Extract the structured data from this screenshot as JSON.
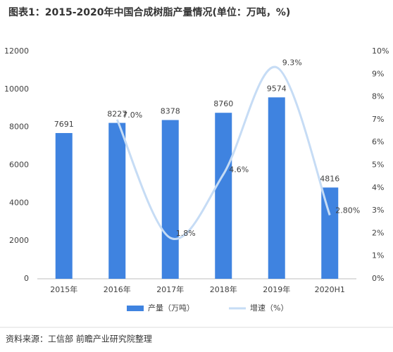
{
  "chart_data": {
    "type": "bar",
    "title": "图表1：2015-2020年中国合成树脂产量情况(单位：万吨，%)",
    "categories": [
      "2015年",
      "2016年",
      "2017年",
      "2018年",
      "2019年",
      "2020H1"
    ],
    "series": [
      {
        "name": "产量（万吨）",
        "type": "bar",
        "color": "#3f83e0",
        "values": [
          7691,
          8227,
          8378,
          8760,
          9574,
          4816
        ]
      },
      {
        "name": "增速（%）",
        "type": "line",
        "axis": "y2",
        "color": "#c6dcf5",
        "values": [
          null,
          7.0,
          1.8,
          4.6,
          9.3,
          2.8
        ],
        "value_labels": [
          null,
          "7.0%",
          "1.8%",
          "4.6%",
          "9.3%",
          "2.80%"
        ]
      }
    ],
    "ylim": [
      0,
      12000
    ],
    "yticks": [
      0,
      2000,
      4000,
      6000,
      8000,
      10000,
      12000
    ],
    "y2lim": [
      0,
      10
    ],
    "y2ticks": [
      {
        "value": 0,
        "label": "0%"
      },
      {
        "value": 1,
        "label": "1%"
      },
      {
        "value": 2,
        "label": "2%"
      },
      {
        "value": 3,
        "label": "3%"
      },
      {
        "value": 4,
        "label": "4%"
      },
      {
        "value": 5,
        "label": "5%"
      },
      {
        "value": 6,
        "label": "6%"
      },
      {
        "value": 7,
        "label": "7%"
      },
      {
        "value": 8,
        "label": "8%"
      },
      {
        "value": 9,
        "label": "9%"
      },
      {
        "value": 10,
        "label": "10%"
      }
    ],
    "legend": "bottom",
    "source": "资料来源：工信部 前瞻产业研究院整理"
  }
}
